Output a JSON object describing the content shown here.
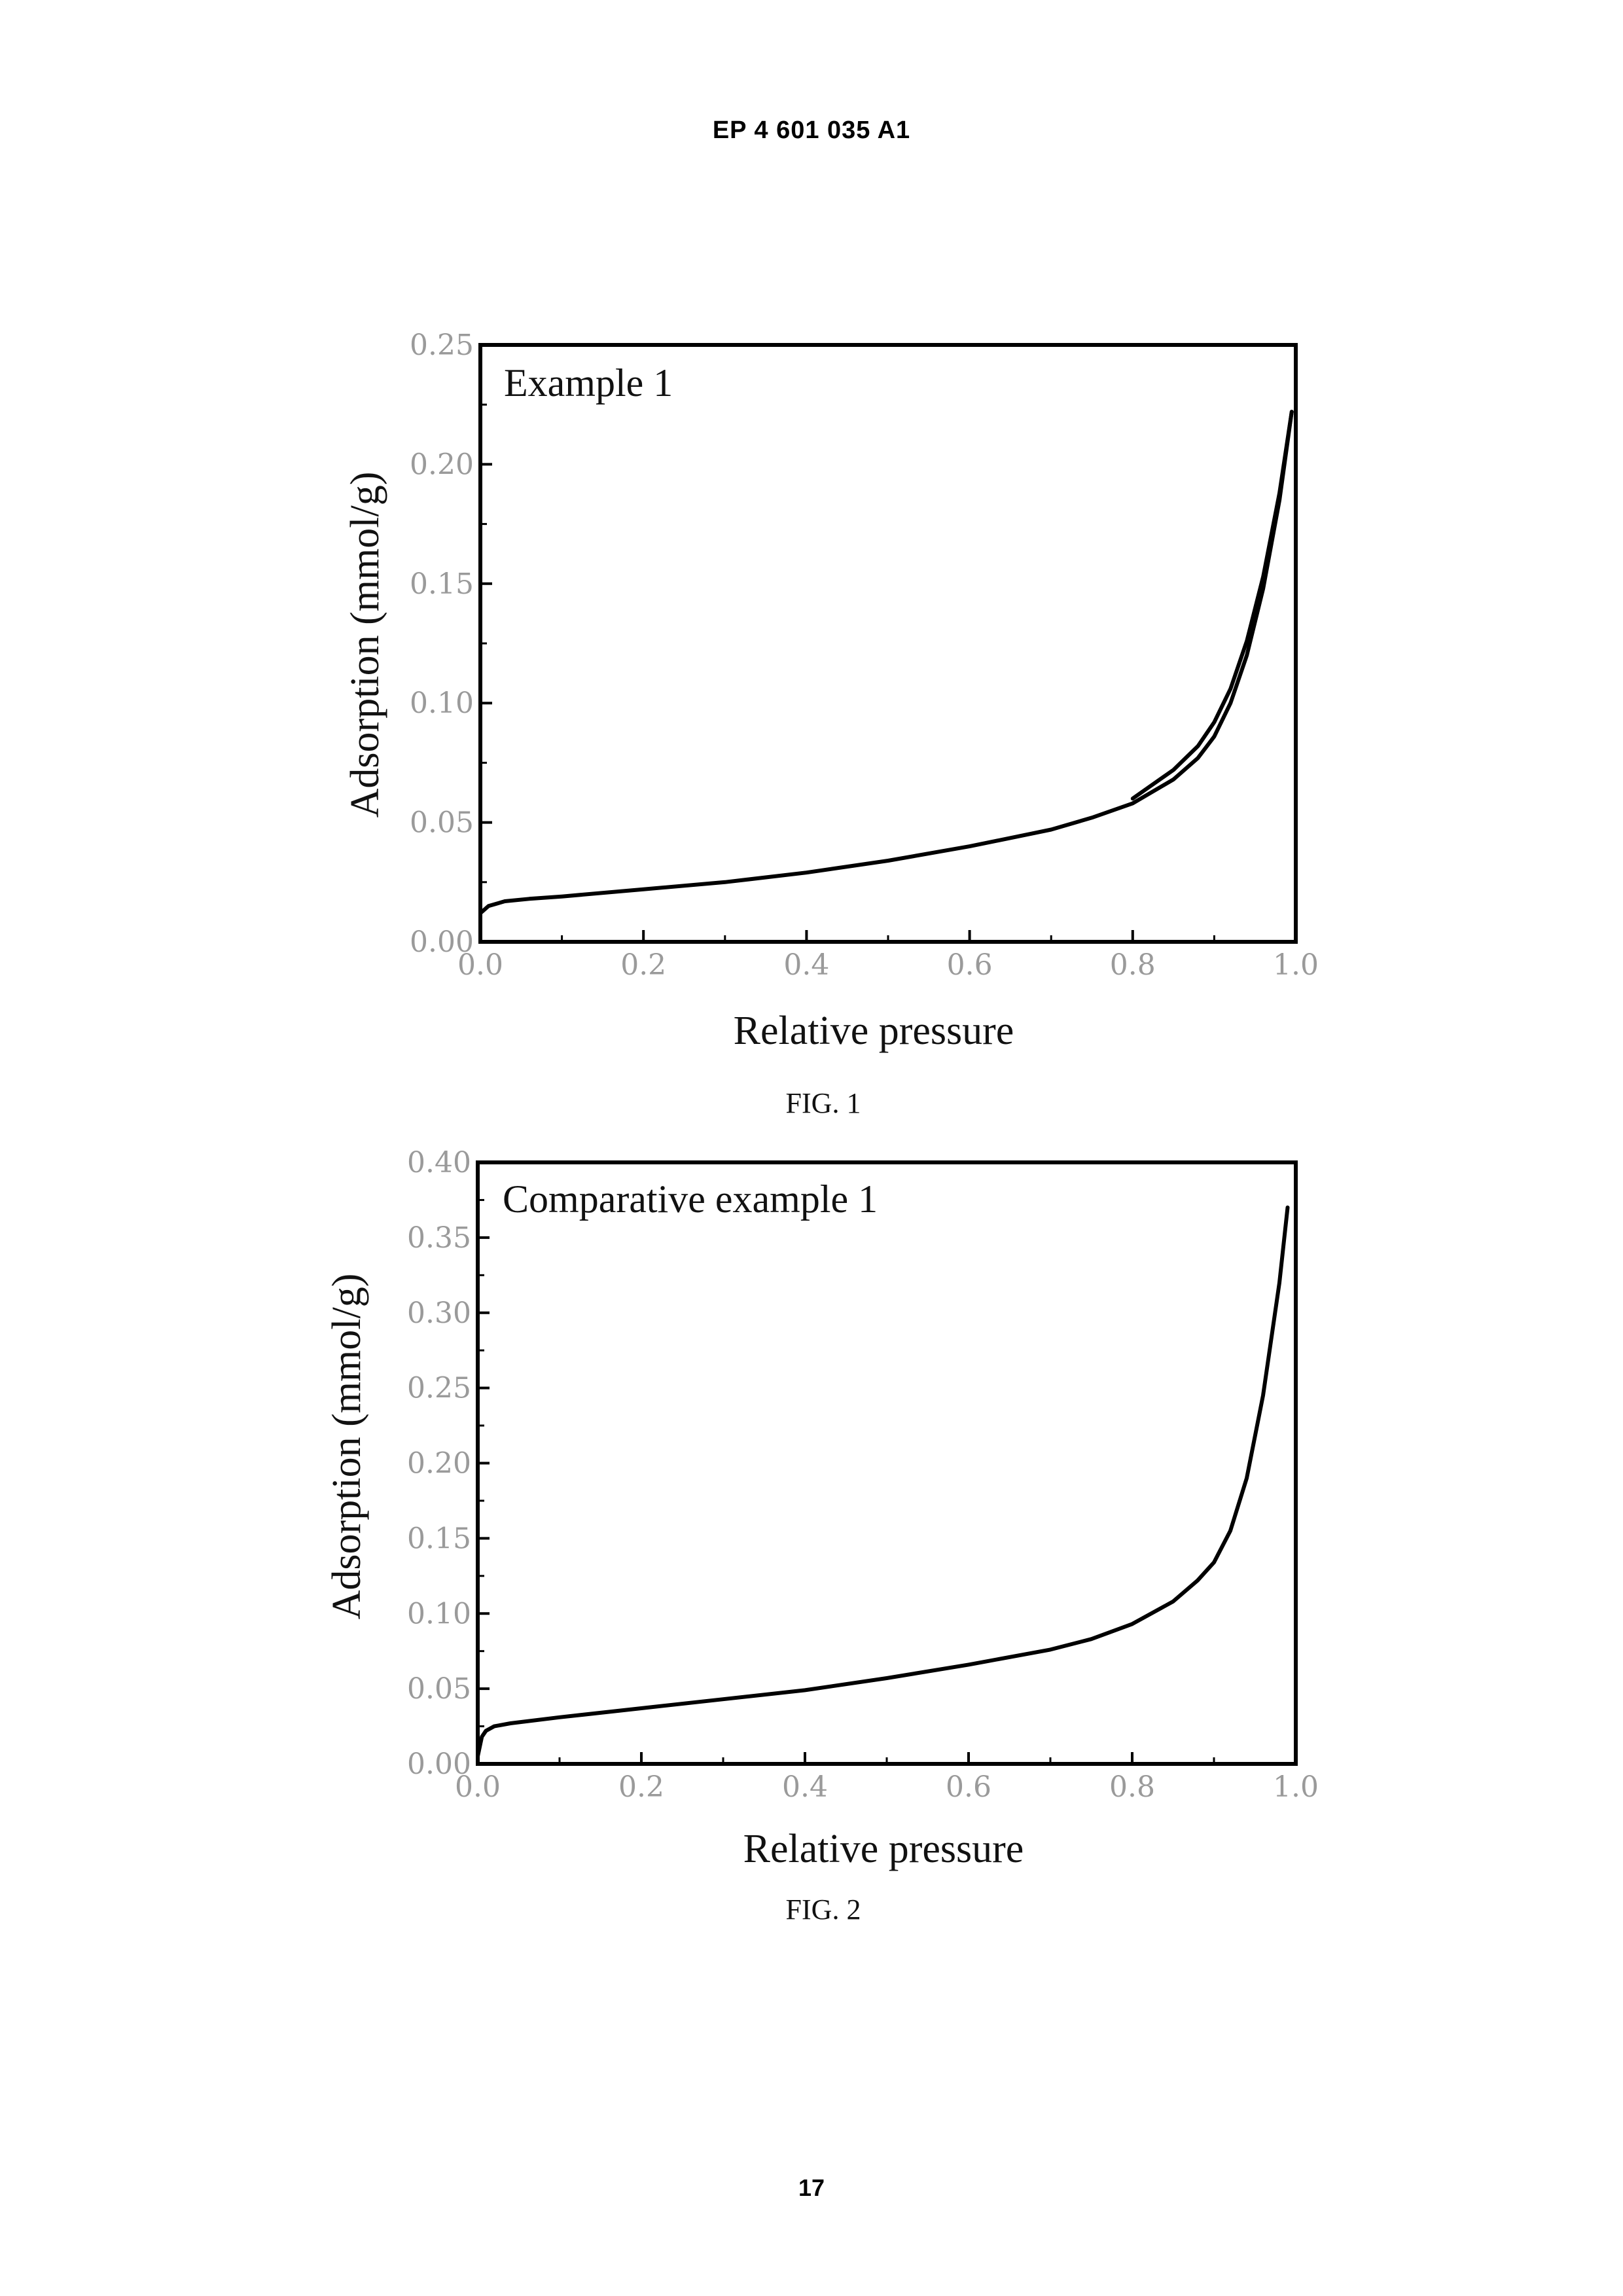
{
  "header": {
    "doc_number": "EP 4 601 035 A1"
  },
  "footer": {
    "page_number": "17"
  },
  "chart_data": [
    {
      "type": "line",
      "figure_caption": "FIG. 1",
      "panel_label": "Example 1",
      "xlabel": "Relative pressure",
      "ylabel": "Adsorption (mmol/g)",
      "xlim": [
        0.0,
        1.0
      ],
      "ylim": [
        0.0,
        0.25
      ],
      "xticks": [
        "0.0",
        "0.2",
        "0.4",
        "0.6",
        "0.8",
        "1.0"
      ],
      "yticks": [
        "0.00",
        "0.05",
        "0.10",
        "0.15",
        "0.20",
        "0.25"
      ],
      "grid": false,
      "series": [
        {
          "x": [
            0.0,
            0.01,
            0.03,
            0.06,
            0.1,
            0.2,
            0.3,
            0.4,
            0.5,
            0.6,
            0.7,
            0.75,
            0.8,
            0.85,
            0.88,
            0.9,
            0.92,
            0.94,
            0.96,
            0.98,
            0.995
          ],
          "values": [
            0.012,
            0.015,
            0.017,
            0.018,
            0.019,
            0.022,
            0.025,
            0.029,
            0.034,
            0.04,
            0.047,
            0.052,
            0.058,
            0.068,
            0.077,
            0.086,
            0.1,
            0.12,
            0.148,
            0.185,
            0.222
          ]
        },
        {
          "x": [
            0.8,
            0.85,
            0.88,
            0.9,
            0.92,
            0.94,
            0.96,
            0.98,
            0.995
          ],
          "values": [
            0.06,
            0.072,
            0.082,
            0.092,
            0.106,
            0.126,
            0.153,
            0.188,
            0.222
          ]
        }
      ]
    },
    {
      "type": "line",
      "figure_caption": "FIG. 2",
      "panel_label": "Comparative example 1",
      "xlabel": "Relative pressure",
      "ylabel": "Adsorption (mmol/g)",
      "xlim": [
        0.0,
        1.0
      ],
      "ylim": [
        0.0,
        0.4
      ],
      "xticks": [
        "0.0",
        "0.2",
        "0.4",
        "0.6",
        "0.8",
        "1.0"
      ],
      "yticks": [
        "0.00",
        "0.05",
        "0.10",
        "0.15",
        "0.20",
        "0.25",
        "0.30",
        "0.35",
        "0.40"
      ],
      "grid": false,
      "series": [
        {
          "x": [
            0.0,
            0.005,
            0.01,
            0.02,
            0.04,
            0.1,
            0.2,
            0.3,
            0.4,
            0.5,
            0.6,
            0.7,
            0.75,
            0.8,
            0.85,
            0.88,
            0.9,
            0.92,
            0.94,
            0.96,
            0.98,
            0.99
          ],
          "values": [
            0.005,
            0.018,
            0.022,
            0.025,
            0.027,
            0.031,
            0.037,
            0.043,
            0.049,
            0.057,
            0.066,
            0.076,
            0.083,
            0.093,
            0.108,
            0.122,
            0.134,
            0.155,
            0.19,
            0.245,
            0.32,
            0.37
          ]
        }
      ]
    }
  ]
}
